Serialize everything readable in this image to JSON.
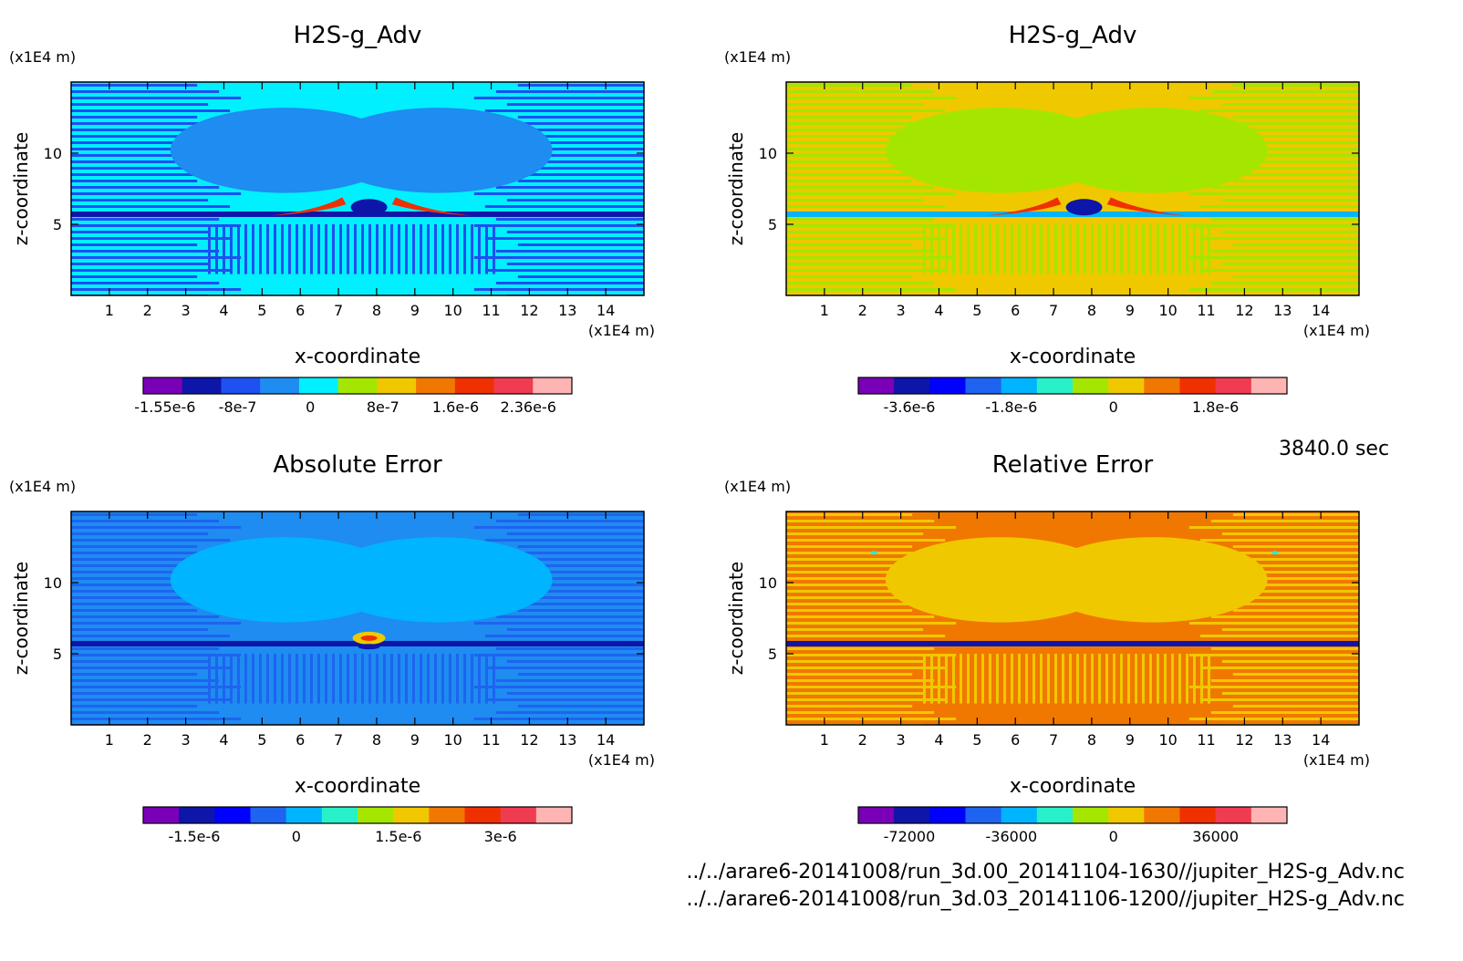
{
  "stamp": "3840.0 sec",
  "sources": [
    "../../arare6-20141008/run_3d.00_20141104-1630//jupiter_H2S-g_Adv.nc",
    "../../arare6-20141008/run_3d.03_20141106-1200//jupiter_H2S-g_Adv.nc"
  ],
  "chart_data": [
    {
      "type": "heatmap",
      "title": "H2S-g_Adv",
      "xlabel": "x-coordinate",
      "ylabel": "z-coordinate",
      "xunit": "(x1E4 m)",
      "yunit": "(x1E4 m)",
      "xlim": [
        0,
        15
      ],
      "ylim": [
        0,
        15
      ],
      "xticks": [
        1,
        2,
        3,
        4,
        5,
        6,
        7,
        8,
        9,
        10,
        11,
        12,
        13,
        14
      ],
      "yticks": [
        5,
        10
      ],
      "colorbar": {
        "colors": [
          "#7a00b8",
          "#0d16a8",
          "#1f50f0",
          "#1e8cf0",
          "#00f0ff",
          "#a4e600",
          "#f0c800",
          "#f07800",
          "#f03000",
          "#f03c50",
          "#ffb4b4"
        ],
        "tick_labels": [
          "-1.55e-6",
          "-8e-7",
          "0",
          "8e-7",
          "1.6e-6",
          "2.36e-6"
        ]
      },
      "field": {
        "background": "#00f0ff",
        "band": "#1e8cf0",
        "stripe": "#1f50f0",
        "feature": "dipole"
      }
    },
    {
      "type": "heatmap",
      "title": "H2S-g_Adv",
      "xlabel": "x-coordinate",
      "ylabel": "z-coordinate",
      "xunit": "(x1E4 m)",
      "yunit": "(x1E4 m)",
      "xlim": [
        0,
        15
      ],
      "ylim": [
        0,
        15
      ],
      "xticks": [
        1,
        2,
        3,
        4,
        5,
        6,
        7,
        8,
        9,
        10,
        11,
        12,
        13,
        14
      ],
      "yticks": [
        5,
        10
      ],
      "colorbar": {
        "colors": [
          "#7a00b8",
          "#0d16a8",
          "#0000ff",
          "#1e64f0",
          "#00b4ff",
          "#28f0c8",
          "#a4e600",
          "#f0c800",
          "#f07800",
          "#f03000",
          "#f03c50",
          "#ffb4b4"
        ],
        "tick_labels": [
          "-3.6e-6",
          "-1.8e-6",
          "0",
          "1.8e-6"
        ]
      },
      "field": {
        "background": "#f0c800",
        "band": "#a4e600",
        "stripe": "#a4e600",
        "feature": "dipole"
      }
    },
    {
      "type": "heatmap",
      "title": "Absolute Error",
      "xlabel": "x-coordinate",
      "ylabel": "z-coordinate",
      "xunit": "(x1E4 m)",
      "yunit": "(x1E4 m)",
      "xlim": [
        0,
        15
      ],
      "ylim": [
        0,
        15
      ],
      "xticks": [
        1,
        2,
        3,
        4,
        5,
        6,
        7,
        8,
        9,
        10,
        11,
        12,
        13,
        14
      ],
      "yticks": [
        5,
        10
      ],
      "colorbar": {
        "colors": [
          "#7a00b8",
          "#0d16a8",
          "#0000ff",
          "#1e64f0",
          "#00b4ff",
          "#28f0c8",
          "#a4e600",
          "#f0c800",
          "#f07800",
          "#f03000",
          "#f03c50",
          "#ffb4b4"
        ],
        "tick_labels": [
          "-1.5e-6",
          "0",
          "1.5e-6",
          "3e-6"
        ]
      },
      "field": {
        "background": "#1e8cf0",
        "band": "#00b4ff",
        "stripe": "#1e64f0",
        "feature": "spot"
      }
    },
    {
      "type": "heatmap",
      "title": "Relative Error",
      "xlabel": "x-coordinate",
      "ylabel": "z-coordinate",
      "xunit": "(x1E4 m)",
      "yunit": "(x1E4 m)",
      "xlim": [
        0,
        15
      ],
      "ylim": [
        0,
        15
      ],
      "xticks": [
        1,
        2,
        3,
        4,
        5,
        6,
        7,
        8,
        9,
        10,
        11,
        12,
        13,
        14
      ],
      "yticks": [
        5,
        10
      ],
      "colorbar": {
        "colors": [
          "#7a00b8",
          "#0d16a8",
          "#0000ff",
          "#1e64f0",
          "#00b4ff",
          "#28f0c8",
          "#a4e600",
          "#f0c800",
          "#f07800",
          "#f03000",
          "#f03c50",
          "#ffb4b4"
        ],
        "tick_labels": [
          "-72000",
          "-36000",
          "0",
          "36000"
        ]
      },
      "field": {
        "background": "#f07800",
        "band": "#f0c800",
        "stripe": "#f0c800",
        "feature": "dots"
      }
    }
  ]
}
